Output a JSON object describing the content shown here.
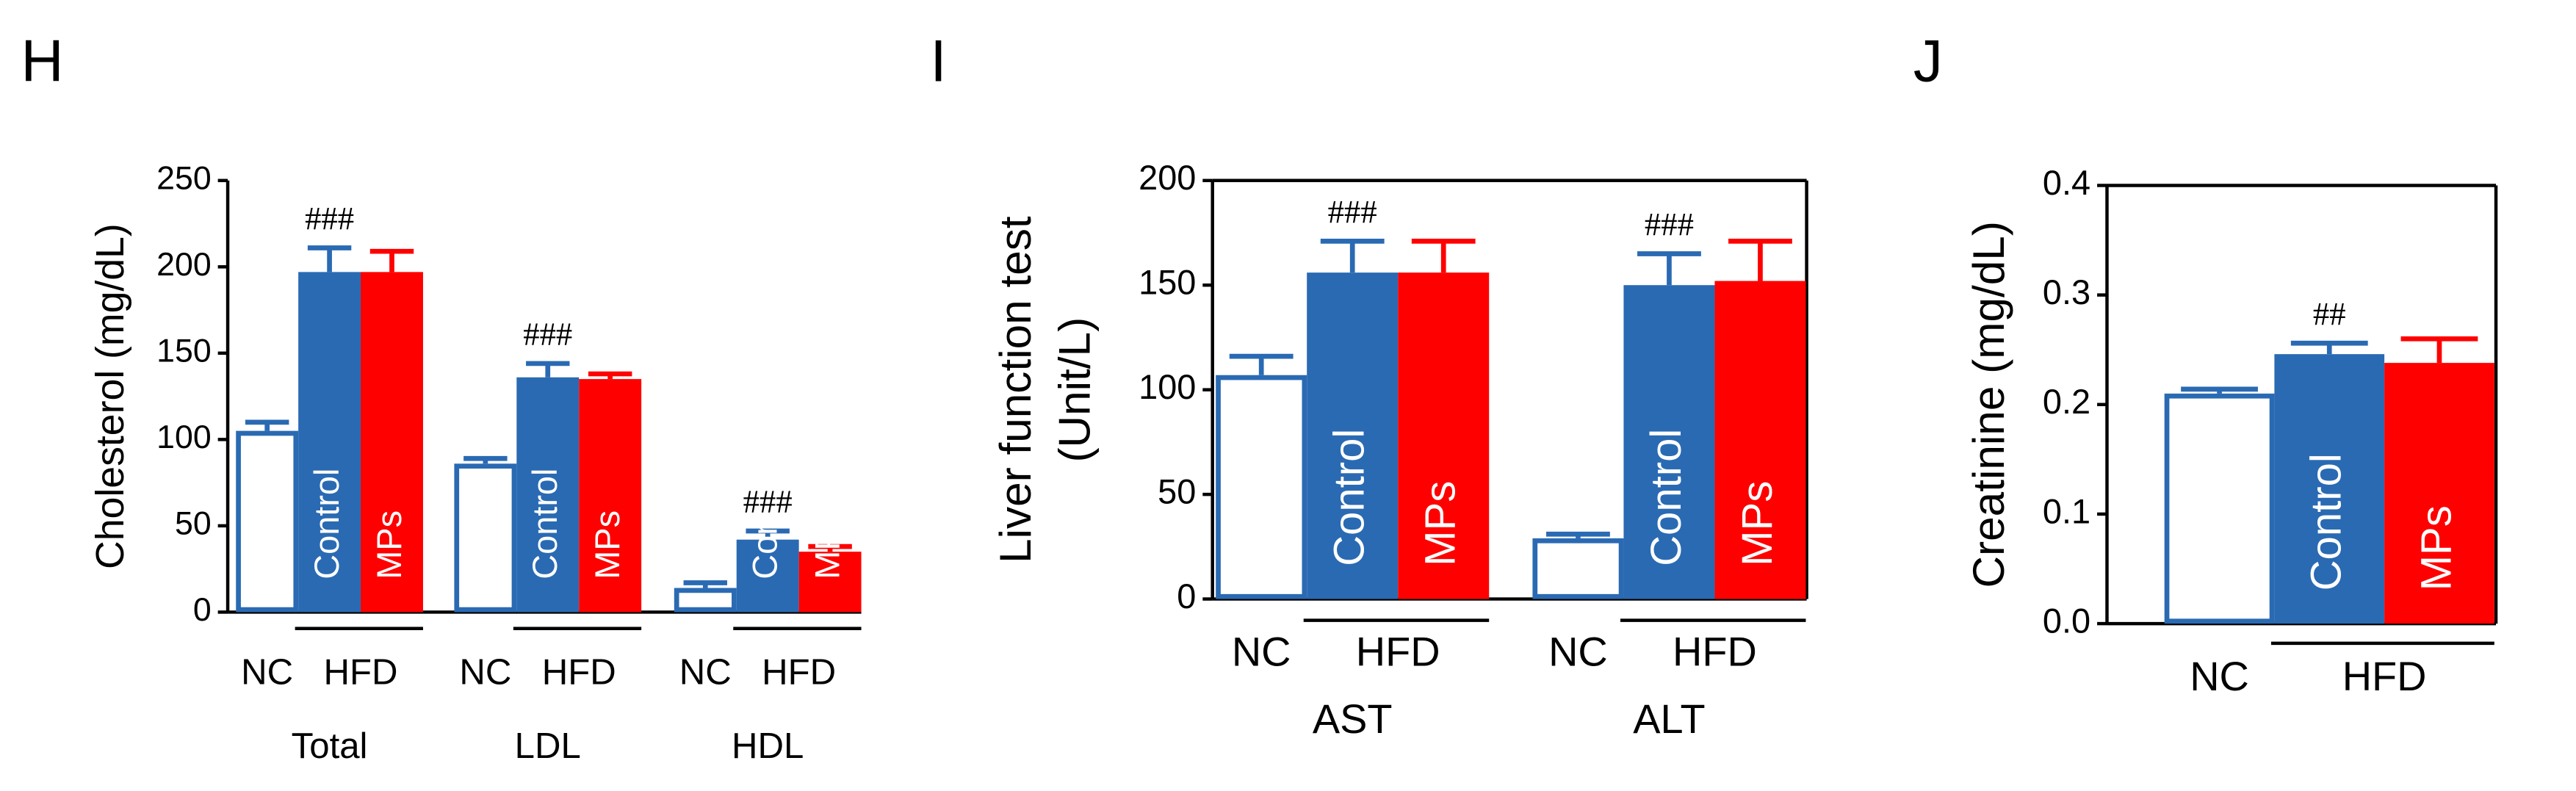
{
  "chart_data": [
    {
      "type": "bar",
      "panel": "H",
      "y_label": "Cholesterol (mg/dL)",
      "categories": [
        "Total",
        "LDL",
        "HDL"
      ],
      "series": [
        {
          "name": "NC",
          "color": "#ffffff",
          "edgecolor": "#2a6ab3",
          "values": [
            105,
            86,
            14
          ],
          "errors": [
            5,
            3,
            3
          ]
        },
        {
          "name": "Control",
          "color": "#2a6ab3",
          "values": [
            197,
            136,
            42
          ],
          "errors": [
            14,
            8,
            5
          ],
          "bar_labels": [
            null,
            null,
            "Con"
          ]
        },
        {
          "name": "MPs",
          "color": "#ff0000",
          "values": [
            197,
            135,
            35
          ],
          "errors": [
            12,
            3,
            3
          ],
          "bar_labels": [
            null,
            null,
            "MP"
          ]
        }
      ],
      "group_label": "HFD",
      "annotations": [
        "###",
        "###",
        "###"
      ],
      "ylim": [
        0,
        250
      ],
      "yticks": [
        0,
        50,
        100,
        150,
        200,
        250
      ],
      "frame": false
    },
    {
      "type": "bar",
      "panel": "I",
      "y_label": [
        "Liver function test",
        "(Unit/L)"
      ],
      "categories": [
        "AST",
        "ALT"
      ],
      "series": [
        {
          "name": "NC",
          "color": "#ffffff",
          "edgecolor": "#2a6ab3",
          "values": [
            107,
            29
          ],
          "errors": [
            9,
            2
          ]
        },
        {
          "name": "Control",
          "color": "#2a6ab3",
          "values": [
            156,
            150
          ],
          "errors": [
            15,
            15
          ]
        },
        {
          "name": "MPs",
          "color": "#ff0000",
          "values": [
            156,
            152
          ],
          "errors": [
            15,
            19
          ]
        }
      ],
      "group_label": "HFD",
      "annotations": [
        "###",
        "###"
      ],
      "ylim": [
        0,
        200
      ],
      "yticks": [
        0,
        50,
        100,
        150,
        200
      ],
      "frame": true
    },
    {
      "type": "bar",
      "panel": "J",
      "y_label": "Creatinine (mg/dL)",
      "categories": [
        null
      ],
      "series": [
        {
          "name": "NC",
          "color": "#ffffff",
          "edgecolor": "#2a6ab3",
          "values": [
            0.21
          ],
          "errors": [
            0.004
          ]
        },
        {
          "name": "Control",
          "color": "#2a6ab3",
          "values": [
            0.246
          ],
          "errors": [
            0.01
          ]
        },
        {
          "name": "MPs",
          "color": "#ff0000",
          "values": [
            0.238
          ],
          "errors": [
            0.022
          ]
        }
      ],
      "group_label": "HFD",
      "annotations": [
        "##"
      ],
      "ylim": [
        0,
        0.4
      ],
      "yticks": [
        {
          "value": 0,
          "label": "0.0"
        },
        0.1,
        0.2,
        0.3,
        0.4
      ],
      "frame": true
    }
  ]
}
